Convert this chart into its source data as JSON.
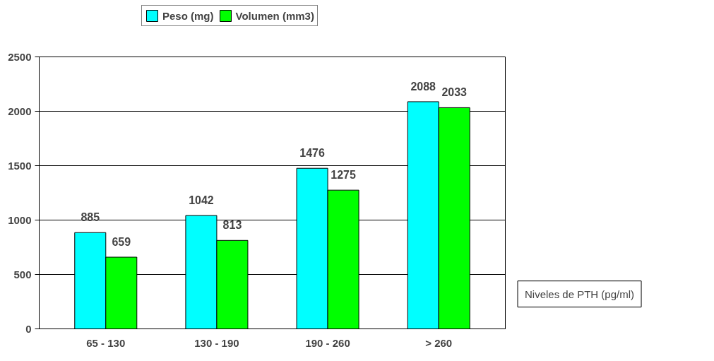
{
  "chart_data": {
    "type": "bar",
    "categories": [
      "65 - 130",
      "130 - 190",
      "190 - 260",
      "> 260"
    ],
    "series": [
      {
        "name": "Peso (mg)",
        "color": "#00ffff",
        "values": [
          885,
          1042,
          1476,
          2088
        ]
      },
      {
        "name": "Volumen (mm3)",
        "color": "#00ff00",
        "values": [
          659,
          813,
          1275,
          2033
        ]
      }
    ],
    "xlabel": "Niveles de PTH (pg/ml)",
    "ylim": [
      0,
      2500
    ],
    "yticks": [
      0,
      500,
      1000,
      1500,
      2000,
      2500
    ],
    "grid": "y",
    "legend": "top",
    "data_labels": true
  }
}
